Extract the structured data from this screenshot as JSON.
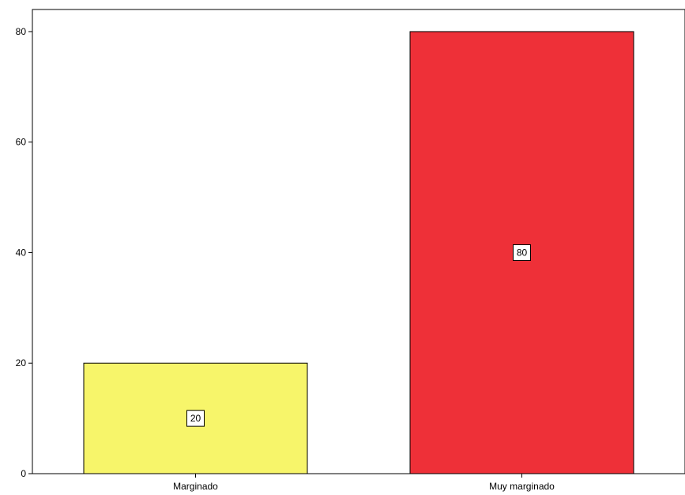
{
  "chart_data": {
    "type": "bar",
    "title": "",
    "xlabel": "",
    "ylabel": "",
    "categories": [
      "Marginado",
      "Muy marginado"
    ],
    "values": [
      20,
      80
    ],
    "data_labels": [
      "20",
      "80"
    ],
    "colors": [
      "#f7f56a",
      "#ee3038"
    ],
    "ylim": [
      0,
      84
    ],
    "yticks": [
      0,
      20,
      40,
      60,
      80
    ],
    "ytick_labels": [
      "0",
      "20",
      "40",
      "60",
      "80"
    ],
    "grid": false,
    "legend": "none"
  }
}
